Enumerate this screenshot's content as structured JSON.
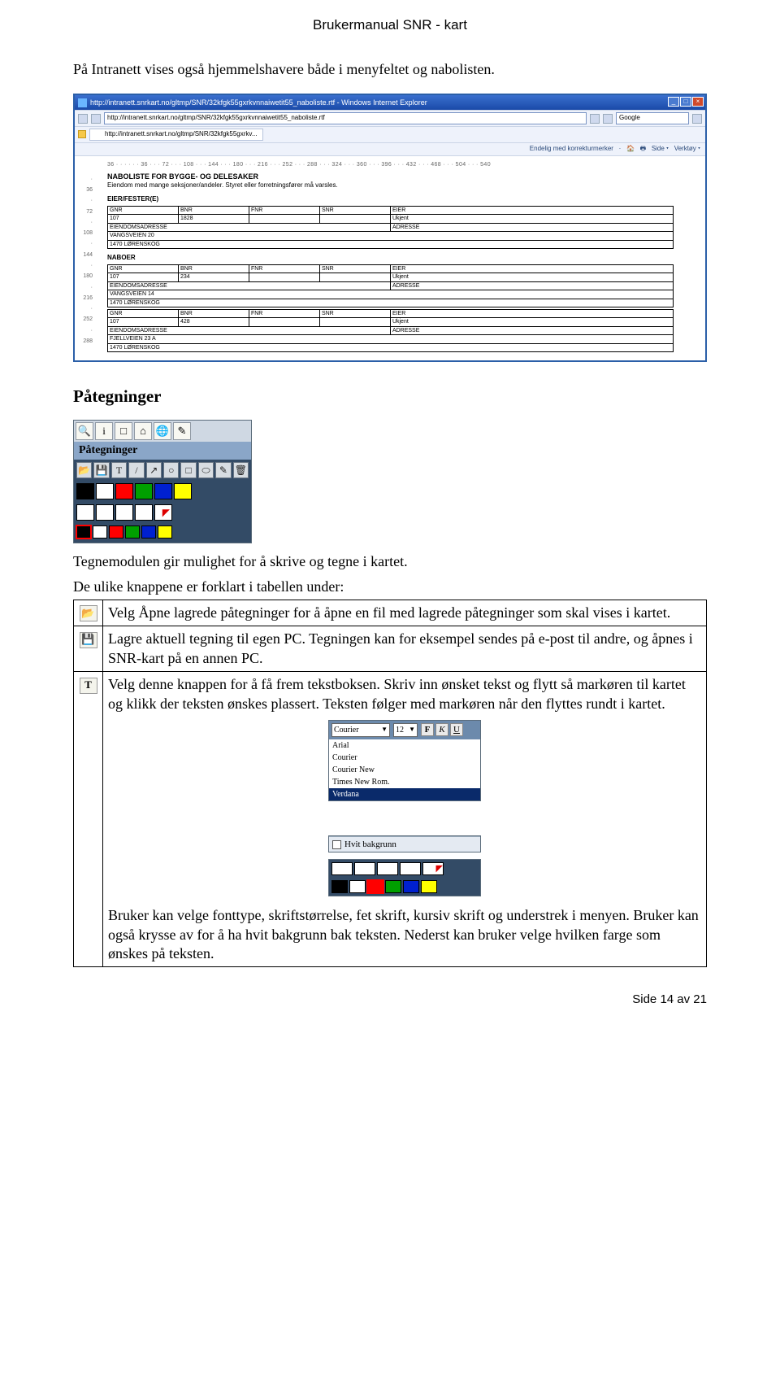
{
  "header": "Brukermanual SNR - kart",
  "intro": "På Intranett vises også hjemmelshavere både i menyfeltet og nabolisten.",
  "ie": {
    "title": "http://intranett.snrkart.no/gltmp/SNR/32kfgk55gxrkvnnaiwetit55_naboliste.rtf - Windows Internet Explorer",
    "url": "http://intranett.snrkart.no/gltmp/SNR/32kfgk55gxrkvnnaiwetit55_naboliste.rtf",
    "search_box": "Google",
    "tab": "http://intranett.snrkart.no/gltmp/SNR/32kfgk55gxrkv...",
    "tool_labels": [
      "Side",
      "Verktøy"
    ],
    "right_toolbar": "Endelig med korrekturmerker",
    "ruler": "36 · · · · · · 36 · · · 72 · · · 108 · · · 144 · · · 180 · · · 216 · · · 252 · · · 288 · · · 324 · · · 360 · · · 396 · · · 432 · · · 468 · · · 504 · · · 540",
    "vruler": [
      "·",
      "36",
      "·",
      "72",
      "·",
      "108",
      "·",
      "144",
      "·",
      "180",
      "·",
      "216",
      "·",
      "252",
      "·",
      "288"
    ],
    "doc_title": "NABOLISTE FOR BYGGE- OG DELESAKER",
    "doc_sub": "Eiendom med mange seksjoner/andeler. Styret eller forretningsfører må varsles.",
    "sec_owner": "EIER/FESTER(E)",
    "sec_neigh": "NABOER",
    "col": {
      "gnr": "GNR",
      "bnr": "BNR",
      "fnr": "FNR",
      "snr": "SNR",
      "eier": "EIER",
      "adr_label": "EIENDOMSADRESSE",
      "adr2": "ADRESSE"
    },
    "owner": {
      "gnr": "107",
      "bnr": "1828",
      "fnr": "",
      "snr": "",
      "eier": "Ukjent",
      "addr1": "VANGSVEIEN 20",
      "addr2": "1470 LØRENSKOG"
    },
    "naboer": [
      {
        "gnr": "107",
        "bnr": "234",
        "fnr": "",
        "snr": "",
        "eier": "Ukjent",
        "addr1": "VANGSVEIEN 14",
        "addr2": "1470 LØRENSKOG"
      },
      {
        "gnr": "107",
        "bnr": "428",
        "fnr": "",
        "snr": "",
        "eier": "Ukjent",
        "addr1": "FJELLVEIEN 23 A",
        "addr2": "1470 LØRENSKOG"
      }
    ]
  },
  "section": "Påtegninger",
  "toolbar": {
    "row1_icons": [
      "🔍",
      "i",
      "□",
      "⌂",
      "🌐",
      "✎"
    ],
    "label": "Påtegninger",
    "row2": [
      "📂",
      "💾",
      "T",
      "/",
      "↗",
      "○",
      "□",
      "⬭",
      "✎",
      "🗑"
    ],
    "row3_colors": [
      "#000000",
      "#ffffff",
      "#ff0000",
      "#00a000",
      "#0020d0",
      "#ffff00"
    ],
    "row4_swatches": [
      "#ffffff",
      "#ffffff",
      "#ffffff",
      "#ffffff"
    ],
    "row5_colors": [
      "#000000",
      "#ffffff",
      "#ff0000",
      "#00a000",
      "#0020d0",
      "#ffff00"
    ]
  },
  "desc": "Tegnemodulen gir mulighet for å skrive og tegne i kartet.",
  "tbl_intro": "De ulike knappene er forklart i tabellen under:",
  "rows": [
    {
      "icon": "📂",
      "icon_name": "open-icon",
      "text": "Velg Åpne lagrede påtegninger for å åpne en fil med lagrede påtegninger som skal vises i kartet."
    },
    {
      "icon": "💾",
      "icon_name": "save-icon",
      "text": "Lagre aktuell tegning til egen PC. Tegningen kan for eksempel sendes på e-post til andre, og åpnes i SNR-kart på en annen PC."
    },
    {
      "icon": "T",
      "icon_name": "text-tool-icon",
      "text": "Velg denne knappen for å få frem tekstboksen. Skriv inn ønsket tekst og flytt så markøren til kartet og klikk der teksten ønskes plassert. Teksten følger med markøren når den flyttes rundt i kartet."
    }
  ],
  "font_panel": {
    "font": "Courier",
    "size": "12",
    "fku": [
      "F",
      "K",
      "U"
    ],
    "fonts": [
      "Arial",
      "Courier",
      "Courier New",
      "Times New Rom.",
      "Verdana"
    ],
    "selected": "Verdana",
    "hvit": "Hvit bakgrunn"
  },
  "mini": {
    "row1": [
      "#ffffff",
      "#ffffff",
      "#ffffff",
      "#ffffff"
    ],
    "row2": [
      "#000000",
      "#ffffff",
      "#ff0000",
      "#00a000",
      "#0020d0",
      "#ffff00"
    ]
  },
  "after_text": "Bruker kan velge fonttype, skriftstørrelse, fet skrift, kursiv skrift og understrek i menyen. Bruker kan også krysse av for å ha hvit bakgrunn bak teksten. Nederst kan bruker velge hvilken farge som ønskes på teksten.",
  "footer": "Side 14 av 21",
  "colors": {
    "red_box": "#ff0000"
  }
}
